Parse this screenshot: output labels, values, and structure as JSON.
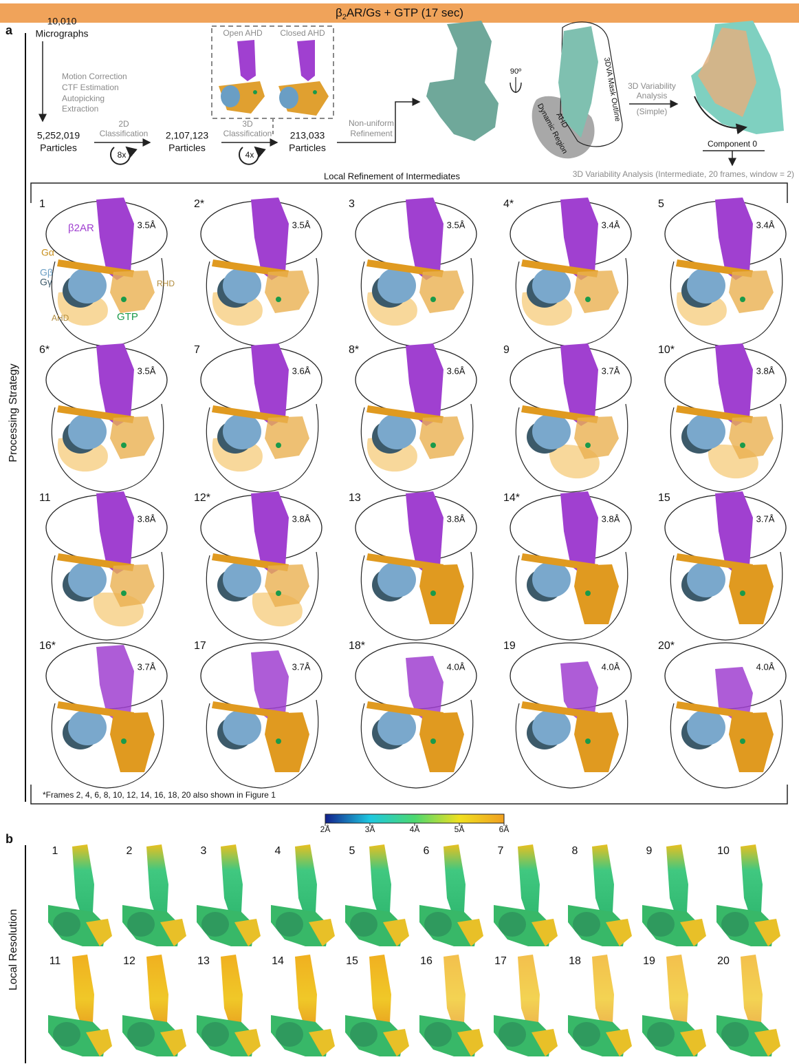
{
  "header": {
    "title_pre": "β",
    "title_sub": "2",
    "title_post": "AR/Gs + GTP (17 sec)"
  },
  "panel_a": {
    "label": "a",
    "side_label": "Processing Strategy",
    "micrographs": [
      "10,010",
      "Micrographs"
    ],
    "preprocessing": [
      "Motion Correction",
      "CTF Estimation",
      "Autopicking",
      "Extraction"
    ],
    "particles_1": [
      "5,252,019",
      "Particles"
    ],
    "class_2d": [
      "2D",
      "Classification"
    ],
    "class_2d_rounds": "8x",
    "particles_2": [
      "2,107,123",
      "Particles"
    ],
    "class_3d": [
      "3D",
      "Classification"
    ],
    "class_3d_rounds": "4x",
    "class_3d_maps": [
      "Open AHD",
      "Closed AHD"
    ],
    "particles_3": [
      "213,033",
      "Particles"
    ],
    "refinement": [
      "Non-uniform",
      "Refinement"
    ],
    "rotation": "90º",
    "mask_labels": [
      "3DVA Mask Outline",
      "AHD",
      "Dynamic Region"
    ],
    "variability": [
      "3D Variability",
      "Analysis",
      "(Simple)"
    ],
    "component": "Component 0",
    "intermediate": "3D Variability Analysis (Intermediate, 20 frames, window = 2)",
    "local_title": "Local Refinement of Intermediates",
    "subunits": [
      "β2AR",
      "Gα",
      "Gβ",
      "Gγ",
      "RHD",
      "AHD",
      "GTP"
    ],
    "frames": [
      {
        "label": "1",
        "resolution": "3.5Å"
      },
      {
        "label": "2*",
        "resolution": "3.5Å"
      },
      {
        "label": "3",
        "resolution": "3.5Å"
      },
      {
        "label": "4*",
        "resolution": "3.4Å"
      },
      {
        "label": "5",
        "resolution": "3.4Å"
      },
      {
        "label": "6*",
        "resolution": "3.5Å"
      },
      {
        "label": "7",
        "resolution": "3.6Å"
      },
      {
        "label": "8*",
        "resolution": "3.6Å"
      },
      {
        "label": "9",
        "resolution": "3.7Å"
      },
      {
        "label": "10*",
        "resolution": "3.8Å"
      },
      {
        "label": "11",
        "resolution": "3.8Å"
      },
      {
        "label": "12*",
        "resolution": "3.8Å"
      },
      {
        "label": "13",
        "resolution": "3.8Å"
      },
      {
        "label": "14*",
        "resolution": "3.8Å"
      },
      {
        "label": "15",
        "resolution": "3.7Å"
      },
      {
        "label": "16*",
        "resolution": "3.7Å"
      },
      {
        "label": "17",
        "resolution": "3.7Å"
      },
      {
        "label": "18*",
        "resolution": "4.0Å"
      },
      {
        "label": "19",
        "resolution": "4.0Å"
      },
      {
        "label": "20*",
        "resolution": "4.0Å"
      }
    ],
    "footnote": "*Frames 2, 4, 6, 8, 10, 12, 14, 16, 18, 20 also shown in Figure 1"
  },
  "panel_b": {
    "label": "b",
    "side_label": "Local Resolution",
    "colorbar_ticks": [
      "2Å",
      "3Å",
      "4Å",
      "5Å",
      "6Å"
    ],
    "frames": [
      "1",
      "2",
      "3",
      "4",
      "5",
      "6",
      "7",
      "8",
      "9",
      "10",
      "11",
      "12",
      "13",
      "14",
      "15",
      "16",
      "17",
      "18",
      "19",
      "20"
    ]
  }
}
